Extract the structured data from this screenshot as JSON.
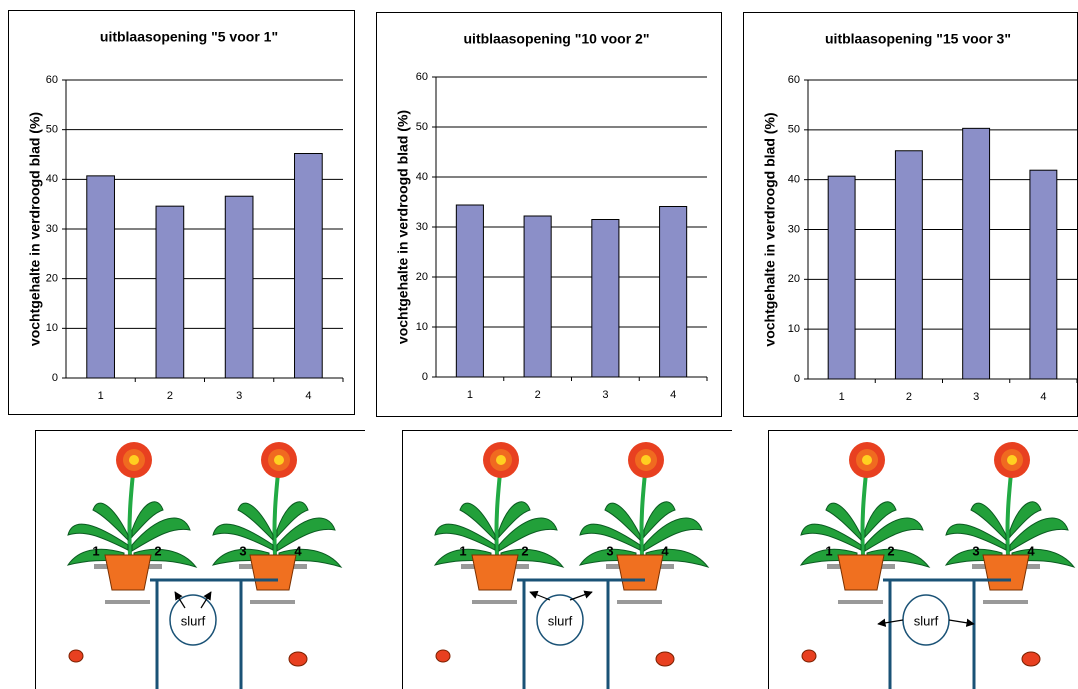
{
  "chart_data": [
    {
      "type": "bar",
      "title": "uitblaasopening \"5 voor 1\"",
      "y_label": "vochtgehalte in verdroogd blad (%)",
      "categories": [
        "1",
        "2",
        "3",
        "4"
      ],
      "values": [
        40.7,
        34.6,
        36.6,
        45.2
      ],
      "color": "#8b8fc8",
      "ylim": [
        0,
        60
      ],
      "yticks": [
        0,
        10,
        20,
        30,
        40,
        50,
        60
      ],
      "grid": true
    },
    {
      "type": "bar",
      "title": "uitblaasopening \"10 voor 2\"",
      "y_label": "vochtgehalte in verdroogd blad (%)",
      "categories": [
        "1",
        "2",
        "3",
        "4"
      ],
      "values": [
        34.4,
        32.2,
        31.5,
        34.1
      ],
      "color": "#8b8fc8",
      "ylim": [
        0,
        60
      ],
      "yticks": [
        0,
        10,
        20,
        30,
        40,
        50,
        60
      ],
      "grid": true
    },
    {
      "type": "bar",
      "title": "uitblaasopening \"15 voor 3\"",
      "y_label": "vochtgehalte in verdroogd blad (%)",
      "categories": [
        "1",
        "2",
        "3",
        "4"
      ],
      "values": [
        40.7,
        45.8,
        50.3,
        41.9
      ],
      "color": "#8b8fc8",
      "ylim": [
        0,
        60
      ],
      "yticks": [
        0,
        10,
        20,
        30,
        40,
        50,
        60
      ],
      "grid": true
    }
  ],
  "diagrams": [
    {
      "labels": [
        "1",
        "2",
        "3",
        "4"
      ],
      "center": "slurf"
    },
    {
      "labels": [
        "1",
        "2",
        "3",
        "4"
      ],
      "center": "slurf"
    },
    {
      "labels": [
        "1",
        "2",
        "3",
        "4"
      ],
      "center": "slurf"
    }
  ]
}
